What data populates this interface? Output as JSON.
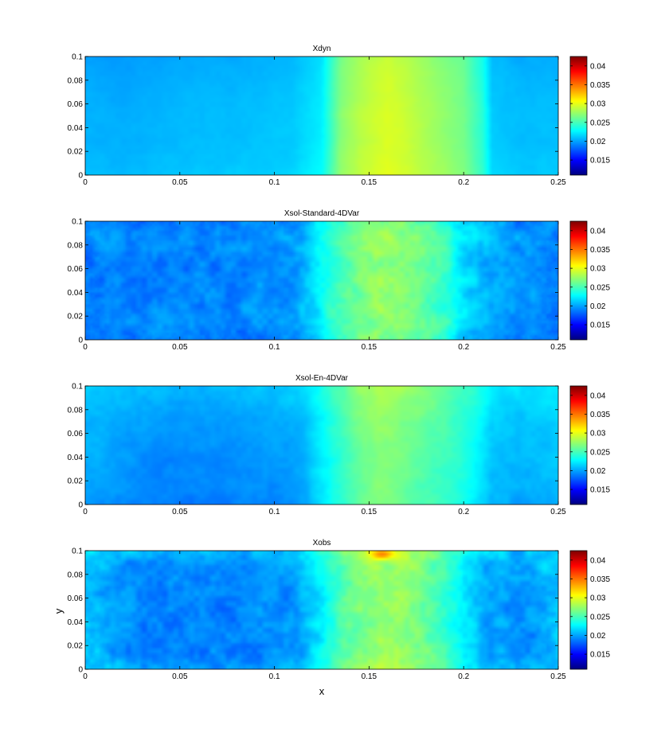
{
  "figure": {
    "xlabel": "x",
    "ylabel": "y"
  },
  "chart_data": [
    {
      "type": "heatmap",
      "title": "Xdyn",
      "xlim": [
        0,
        0.25
      ],
      "ylim": [
        0,
        0.1
      ],
      "xticks": [
        "0",
        "0.05",
        "0.1",
        "0.15",
        "0.2",
        "0.25"
      ],
      "yticks": [
        "0",
        "0.02",
        "0.04",
        "0.06",
        "0.08",
        "0.1"
      ],
      "colorbar_ticks": [
        "0.015",
        "0.02",
        "0.025",
        "0.03",
        "0.035",
        "0.04"
      ],
      "clim": [
        0.011,
        0.0425
      ],
      "colormap": "jet",
      "x_profile": {
        "x": [
          0,
          0.02,
          0.05,
          0.08,
          0.11,
          0.125,
          0.135,
          0.145,
          0.155,
          0.16,
          0.17,
          0.185,
          0.2,
          0.21,
          0.215,
          0.23,
          0.25
        ],
        "value": [
          0.0205,
          0.0203,
          0.0207,
          0.0208,
          0.0212,
          0.0225,
          0.027,
          0.0285,
          0.0293,
          0.0296,
          0.029,
          0.0277,
          0.0265,
          0.024,
          0.0212,
          0.0208,
          0.0209
        ]
      },
      "y_profile": {
        "y": [
          0,
          0.01,
          0.03,
          0.05,
          0.07,
          0.09,
          0.1
        ],
        "value": [
          0.0004,
          0.0002,
          0,
          0,
          -0.0002,
          -0.0004,
          -0.0006
        ]
      },
      "texture": 0.00025,
      "edge_darkening": 0
    },
    {
      "type": "heatmap",
      "title": "Xsol-Standard-4DVar",
      "xlim": [
        0,
        0.25
      ],
      "ylim": [
        0,
        0.1
      ],
      "xticks": [
        "0",
        "0.05",
        "0.1",
        "0.15",
        "0.2",
        "0.25"
      ],
      "yticks": [
        "0",
        "0.02",
        "0.04",
        "0.06",
        "0.08",
        "0.1"
      ],
      "colorbar_ticks": [
        "0.015",
        "0.02",
        "0.025",
        "0.03",
        "0.035",
        "0.04"
      ],
      "clim": [
        0.011,
        0.0425
      ],
      "colormap": "jet",
      "x_profile": {
        "x": [
          0,
          0.02,
          0.05,
          0.08,
          0.11,
          0.12,
          0.13,
          0.145,
          0.155,
          0.165,
          0.175,
          0.19,
          0.2,
          0.21,
          0.23,
          0.25
        ],
        "value": [
          0.0195,
          0.0192,
          0.0188,
          0.019,
          0.0195,
          0.0215,
          0.024,
          0.0263,
          0.0272,
          0.027,
          0.0262,
          0.0245,
          0.022,
          0.0205,
          0.0193,
          0.0195
        ]
      },
      "y_profile": {
        "y": [
          0,
          0.01,
          0.03,
          0.05,
          0.07,
          0.09,
          0.1
        ],
        "value": [
          0.0004,
          0.0002,
          0,
          0,
          0,
          0.0004,
          0.0006
        ]
      },
      "texture": 0.0014,
      "edge_darkening": 0.0012
    },
    {
      "type": "heatmap",
      "title": "Xsol-En-4DVar",
      "xlim": [
        0,
        0.25
      ],
      "ylim": [
        0,
        0.1
      ],
      "xticks": [
        "0",
        "0.05",
        "0.1",
        "0.15",
        "0.2",
        "0.25"
      ],
      "yticks": [
        "0",
        "0.02",
        "0.04",
        "0.06",
        "0.08",
        "0.1"
      ],
      "colorbar_ticks": [
        "0.015",
        "0.02",
        "0.025",
        "0.03",
        "0.035",
        "0.04"
      ],
      "clim": [
        0.011,
        0.0425
      ],
      "colormap": "jet",
      "x_profile": {
        "x": [
          0,
          0.02,
          0.05,
          0.08,
          0.1,
          0.115,
          0.13,
          0.145,
          0.155,
          0.165,
          0.175,
          0.19,
          0.205,
          0.215,
          0.23,
          0.25
        ],
        "value": [
          0.0205,
          0.0198,
          0.0193,
          0.0196,
          0.0198,
          0.0205,
          0.0235,
          0.0262,
          0.0272,
          0.0268,
          0.026,
          0.025,
          0.0232,
          0.0212,
          0.0206,
          0.0212
        ]
      },
      "y_profile": {
        "y": [
          0,
          0.01,
          0.03,
          0.05,
          0.07,
          0.09,
          0.1
        ],
        "value": [
          -0.0006,
          -0.0004,
          -0.0003,
          0,
          0.0002,
          0.0009,
          0.0012
        ]
      },
      "texture": 0.0006,
      "edge_darkening": 0
    },
    {
      "type": "heatmap",
      "title": "Xobs",
      "xlim": [
        0,
        0.25
      ],
      "ylim": [
        0,
        0.1
      ],
      "xticks": [
        "0",
        "0.05",
        "0.1",
        "0.15",
        "0.2",
        "0.25"
      ],
      "yticks": [
        "0",
        "0.02",
        "0.04",
        "0.06",
        "0.08",
        "0.1"
      ],
      "colorbar_ticks": [
        "0.015",
        "0.02",
        "0.025",
        "0.03",
        "0.035",
        "0.04"
      ],
      "clim": [
        0.011,
        0.0425
      ],
      "colormap": "jet",
      "x_profile": {
        "x": [
          0,
          0.02,
          0.05,
          0.08,
          0.11,
          0.12,
          0.13,
          0.145,
          0.155,
          0.165,
          0.175,
          0.19,
          0.2,
          0.21,
          0.23,
          0.25
        ],
        "value": [
          0.0205,
          0.0193,
          0.0188,
          0.0189,
          0.0195,
          0.0215,
          0.024,
          0.0265,
          0.0276,
          0.0273,
          0.0265,
          0.0248,
          0.0222,
          0.0205,
          0.0192,
          0.0205
        ]
      },
      "y_profile": {
        "y": [
          0,
          0.01,
          0.03,
          0.05,
          0.07,
          0.09,
          0.1
        ],
        "value": [
          0.0003,
          0.0001,
          0,
          0,
          0,
          0.0004,
          0.0008
        ]
      },
      "texture": 0.0015,
      "edge_darkening": -0.0008,
      "hotspot": {
        "x": 0.157,
        "y": 0.097,
        "value": 0.0345
      }
    }
  ]
}
